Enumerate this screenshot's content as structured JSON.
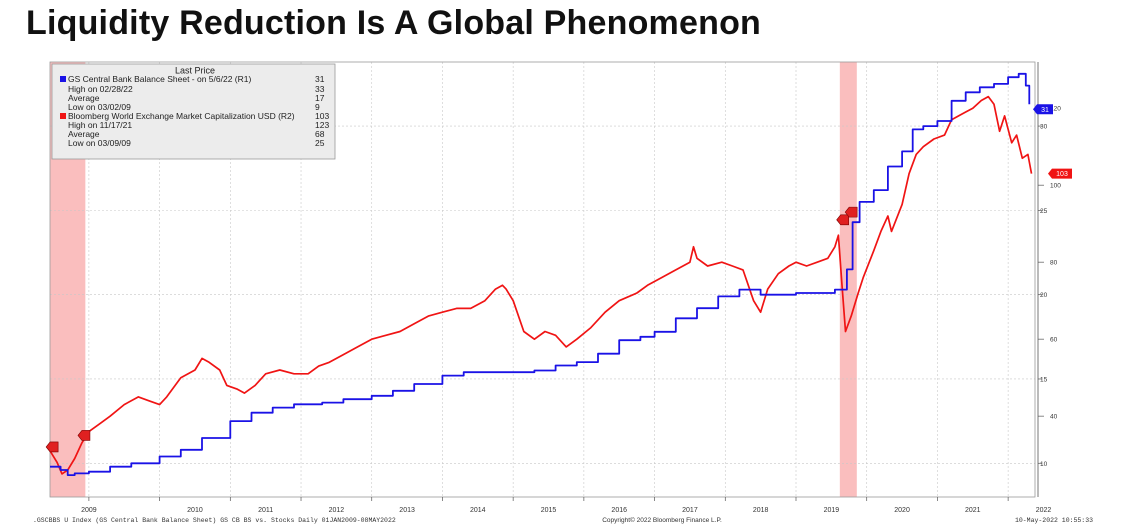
{
  "page": {
    "title": "Liquidity Reduction Is A Global Phenomenon"
  },
  "legend": {
    "header": "Last Price",
    "series1_label": "GS Central Bank Balance Sheet -  on 5/6/22  (R1)",
    "series1_value": "31",
    "series1_high": "High on 02/28/22",
    "series1_high_value": "33",
    "series1_avg": "Average",
    "series1_avg_value": "17",
    "series1_low": "Low on 03/02/09",
    "series1_low_value": "9",
    "series2_label": "Bloomberg World Exchange Market Capitalization USD  (R2)",
    "series2_value": "103",
    "series2_high": "High on 11/17/21",
    "series2_high_value": "123",
    "series2_avg": "Average",
    "series2_avg_value": "68",
    "series2_low": "Low on 03/09/09",
    "series2_low_value": "25"
  },
  "footer": {
    "left": ".GSCBBS U Index (GS Central Bank Balance Sheet) GS CB BS vs. Stocks  Daily 01JAN2009-08MAY2022",
    "center": "Copyright© 2022 Bloomberg Finance L.P.",
    "right": "10-May-2022 10:55:33"
  },
  "colors": {
    "series1": "#1a12e6",
    "series2": "#f01414",
    "recession": "#f9b3b3"
  },
  "chart_data": {
    "type": "line",
    "x_axis": {
      "range": [
        2008.45,
        2022.38
      ],
      "ticks": [
        {
          "label": "2009",
          "value": 2009.0
        },
        {
          "label": "2010",
          "value": 2010.0
        },
        {
          "label": "2011",
          "value": 2011.0
        },
        {
          "label": "2012",
          "value": 2012.0
        },
        {
          "label": "2013",
          "value": 2013.0
        },
        {
          "label": "2014",
          "value": 2014.0
        },
        {
          "label": "2015",
          "value": 2015.0
        },
        {
          "label": "2016",
          "value": 2016.0
        },
        {
          "label": "2017",
          "value": 2017.0
        },
        {
          "label": "2018",
          "value": 2018.0
        },
        {
          "label": "2019",
          "value": 2019.0
        },
        {
          "label": "2020",
          "value": 2020.0
        },
        {
          "label": "2021",
          "value": 2021.0
        },
        {
          "label": "2022",
          "value": 2022.0
        }
      ]
    },
    "axis_r1": {
      "range": [
        8.0,
        33.8
      ],
      "ticks": [
        10,
        15,
        20,
        25,
        30
      ]
    },
    "axis_r2": {
      "range": [
        19.0,
        132.0
      ],
      "ticks": [
        40,
        60,
        80,
        100,
        120
      ]
    },
    "current_value_tags": [
      {
        "axis": "r1",
        "label": "31",
        "value": 31
      },
      {
        "axis": "r2",
        "label": "103",
        "value": 103
      }
    ],
    "recessions": [
      {
        "start": 2008.45,
        "end": 2008.95
      },
      {
        "start": 2019.62,
        "end": 2019.86
      }
    ],
    "annotation_markers": [
      {
        "label": "",
        "x": 2008.48,
        "axis": "r2",
        "y": 32
      },
      {
        "label": "",
        "x": 2008.93,
        "axis": "r2",
        "y": 35
      },
      {
        "label": "",
        "x": 2019.66,
        "axis": "r2",
        "y": 91
      },
      {
        "label": "",
        "x": 2019.78,
        "axis": "r2",
        "y": 93
      }
    ],
    "series": [
      {
        "name": "GS Central Bank Balance Sheet -  on 5/6/22  (R1)",
        "axis": "r1",
        "color": "#1a12e6",
        "points": [
          [
            2008.45,
            9.8
          ],
          [
            2008.6,
            9.6
          ],
          [
            2008.7,
            9.3
          ],
          [
            2008.8,
            9.4
          ],
          [
            2009.0,
            9.5
          ],
          [
            2009.3,
            9.8
          ],
          [
            2009.6,
            10.0
          ],
          [
            2010.0,
            10.4
          ],
          [
            2010.3,
            10.8
          ],
          [
            2010.6,
            11.5
          ],
          [
            2011.0,
            12.5
          ],
          [
            2011.3,
            13.0
          ],
          [
            2011.6,
            13.3
          ],
          [
            2011.9,
            13.5
          ],
          [
            2012.3,
            13.6
          ],
          [
            2012.6,
            13.8
          ],
          [
            2013.0,
            14.0
          ],
          [
            2013.3,
            14.3
          ],
          [
            2013.6,
            14.7
          ],
          [
            2014.0,
            15.2
          ],
          [
            2014.3,
            15.4
          ],
          [
            2014.6,
            15.4
          ],
          [
            2015.0,
            15.4
          ],
          [
            2015.3,
            15.5
          ],
          [
            2015.6,
            15.8
          ],
          [
            2015.9,
            16.0
          ],
          [
            2016.2,
            16.5
          ],
          [
            2016.5,
            17.3
          ],
          [
            2016.8,
            17.5
          ],
          [
            2017.0,
            17.8
          ],
          [
            2017.3,
            18.6
          ],
          [
            2017.6,
            19.2
          ],
          [
            2017.9,
            19.9
          ],
          [
            2018.2,
            20.3
          ],
          [
            2018.5,
            20.0
          ],
          [
            2018.8,
            20.0
          ],
          [
            2019.0,
            20.1
          ],
          [
            2019.3,
            20.1
          ],
          [
            2019.55,
            20.3
          ],
          [
            2019.65,
            20.3
          ],
          [
            2019.72,
            21.5
          ],
          [
            2019.8,
            24.3
          ],
          [
            2019.9,
            25.5
          ],
          [
            2020.1,
            26.2
          ],
          [
            2020.3,
            27.6
          ],
          [
            2020.5,
            28.5
          ],
          [
            2020.65,
            29.8
          ],
          [
            2020.8,
            30.0
          ],
          [
            2021.0,
            30.3
          ],
          [
            2021.2,
            31.5
          ],
          [
            2021.4,
            32.0
          ],
          [
            2021.6,
            32.3
          ],
          [
            2021.8,
            32.5
          ],
          [
            2022.0,
            32.9
          ],
          [
            2022.15,
            33.1
          ],
          [
            2022.25,
            32.4
          ],
          [
            2022.3,
            31.3
          ]
        ]
      },
      {
        "name": "Bloomberg World Exchange Market Capitalization USD  (R2)",
        "axis": "r2",
        "color": "#f01414",
        "points": [
          [
            2008.45,
            31
          ],
          [
            2008.55,
            28
          ],
          [
            2008.62,
            25
          ],
          [
            2008.7,
            26
          ],
          [
            2008.8,
            29
          ],
          [
            2008.9,
            33
          ],
          [
            2009.0,
            36
          ],
          [
            2009.15,
            38
          ],
          [
            2009.3,
            40
          ],
          [
            2009.5,
            43
          ],
          [
            2009.7,
            45
          ],
          [
            2009.85,
            44
          ],
          [
            2010.0,
            43
          ],
          [
            2010.1,
            45
          ],
          [
            2010.3,
            50
          ],
          [
            2010.5,
            52
          ],
          [
            2010.6,
            55
          ],
          [
            2010.7,
            54
          ],
          [
            2010.85,
            52
          ],
          [
            2010.95,
            48
          ],
          [
            2011.1,
            47
          ],
          [
            2011.2,
            46
          ],
          [
            2011.35,
            48
          ],
          [
            2011.5,
            51
          ],
          [
            2011.7,
            52
          ],
          [
            2011.9,
            51
          ],
          [
            2012.1,
            51
          ],
          [
            2012.25,
            53
          ],
          [
            2012.4,
            54
          ],
          [
            2012.6,
            56
          ],
          [
            2012.8,
            58
          ],
          [
            2013.0,
            60
          ],
          [
            2013.2,
            61
          ],
          [
            2013.4,
            62
          ],
          [
            2013.6,
            64
          ],
          [
            2013.8,
            66
          ],
          [
            2014.0,
            67
          ],
          [
            2014.2,
            68
          ],
          [
            2014.4,
            68
          ],
          [
            2014.6,
            70
          ],
          [
            2014.75,
            73
          ],
          [
            2014.85,
            74
          ],
          [
            2014.9,
            73
          ],
          [
            2015.0,
            70
          ],
          [
            2015.15,
            62
          ],
          [
            2015.3,
            60
          ],
          [
            2015.45,
            62
          ],
          [
            2015.6,
            61
          ],
          [
            2015.75,
            58
          ],
          [
            2015.9,
            60
          ],
          [
            2016.1,
            63
          ],
          [
            2016.3,
            67
          ],
          [
            2016.5,
            70
          ],
          [
            2016.75,
            72
          ],
          [
            2016.9,
            74
          ],
          [
            2017.1,
            76
          ],
          [
            2017.3,
            78
          ],
          [
            2017.5,
            80
          ],
          [
            2017.55,
            84
          ],
          [
            2017.6,
            81
          ],
          [
            2017.75,
            79
          ],
          [
            2017.95,
            80
          ],
          [
            2018.1,
            79
          ],
          [
            2018.25,
            78
          ],
          [
            2018.4,
            70
          ],
          [
            2018.5,
            67
          ],
          [
            2018.6,
            73
          ],
          [
            2018.75,
            77
          ],
          [
            2018.9,
            79
          ],
          [
            2019.0,
            80
          ],
          [
            2019.15,
            79
          ],
          [
            2019.3,
            80
          ],
          [
            2019.45,
            81
          ],
          [
            2019.55,
            84
          ],
          [
            2019.6,
            87
          ],
          [
            2019.65,
            74
          ],
          [
            2019.7,
            62
          ],
          [
            2019.78,
            66
          ],
          [
            2019.88,
            72
          ],
          [
            2019.95,
            76
          ],
          [
            2020.1,
            83
          ],
          [
            2020.2,
            88
          ],
          [
            2020.3,
            92
          ],
          [
            2020.35,
            88
          ],
          [
            2020.5,
            95
          ],
          [
            2020.6,
            103
          ],
          [
            2020.7,
            108
          ],
          [
            2020.8,
            110
          ],
          [
            2020.95,
            112
          ],
          [
            2021.1,
            113
          ],
          [
            2021.2,
            117
          ],
          [
            2021.3,
            118
          ],
          [
            2021.4,
            119
          ],
          [
            2021.5,
            120
          ],
          [
            2021.62,
            122
          ],
          [
            2021.72,
            123
          ],
          [
            2021.8,
            121
          ],
          [
            2021.88,
            114
          ],
          [
            2021.95,
            118
          ],
          [
            2022.05,
            111
          ],
          [
            2022.12,
            113
          ],
          [
            2022.2,
            107
          ],
          [
            2022.28,
            108
          ],
          [
            2022.33,
            103
          ]
        ]
      }
    ]
  }
}
